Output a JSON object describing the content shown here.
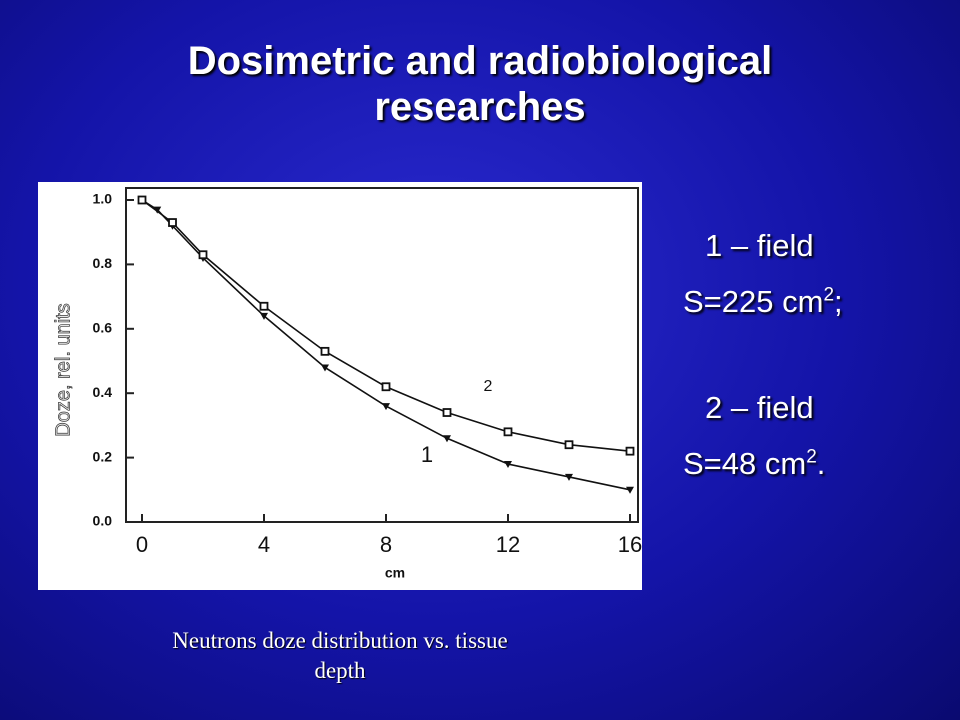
{
  "title": "Dosimetric and radiobiological researches",
  "legend_notes": [
    {
      "label": "1 – field",
      "area": {
        "text": "S=225 cm",
        "sup": "2",
        "end": ";"
      }
    },
    {
      "label": "2 – field",
      "area": {
        "text": "S=48 cm",
        "sup": "2",
        "end": "."
      }
    }
  ],
  "caption": [
    "Neutrons doze distribution vs. tissue",
    "depth"
  ],
  "chart_data": {
    "type": "line",
    "xlabel": "cm",
    "ylabel": "Doze, rel. units",
    "xlim": [
      0,
      16
    ],
    "ylim": [
      0,
      1
    ],
    "xticks": [
      0,
      4,
      8,
      12,
      16
    ],
    "yticks": [
      {
        "value": 0,
        "label": "0.0"
      },
      0.2,
      0.4,
      0.6,
      0.8,
      {
        "value": 1,
        "label": "1.0"
      }
    ],
    "series": [
      {
        "name": "1",
        "color": "#111111",
        "marker": "triangle",
        "x": [
          0,
          0.5,
          1,
          2,
          4,
          6,
          8,
          10,
          12,
          14,
          16
        ],
        "values": [
          1.0,
          0.97,
          0.92,
          0.82,
          0.64,
          0.48,
          0.36,
          0.26,
          0.18,
          0.14,
          0.1
        ]
      },
      {
        "name": "2",
        "color": "#111111",
        "marker": "square",
        "x": [
          0,
          1,
          2,
          4,
          6,
          8,
          10,
          12,
          14,
          16
        ],
        "values": [
          1.0,
          0.93,
          0.83,
          0.67,
          0.53,
          0.42,
          0.34,
          0.28,
          0.24,
          0.22
        ]
      }
    ]
  }
}
